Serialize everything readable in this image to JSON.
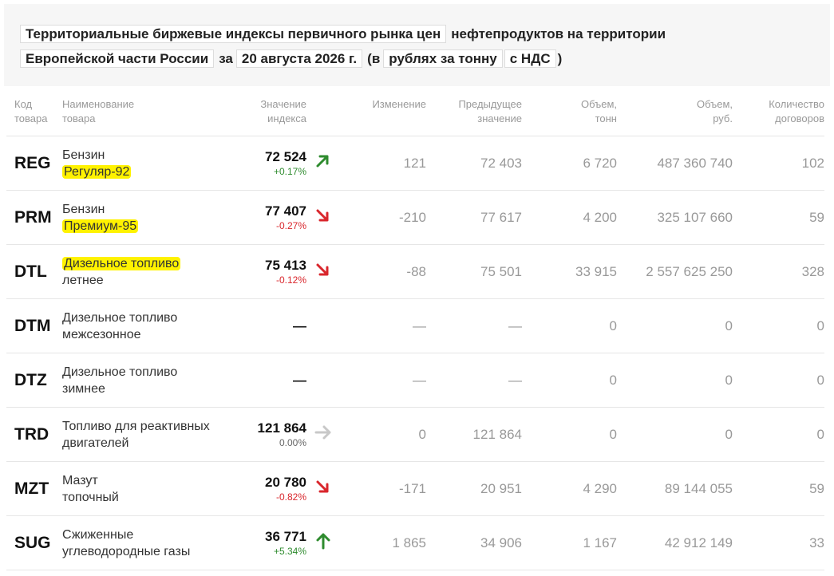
{
  "header": {
    "title": [
      "Территориальные биржевые индексы первичного рынка цен",
      "нефтепродуктов на территории",
      "Европейской части России",
      "за",
      "20 августа 2026 г.",
      "(в",
      "рублях за тонну",
      "с НДС",
      ")"
    ]
  },
  "table": {
    "columns": [
      [
        "Код",
        "товара"
      ],
      [
        "Наименование",
        "товара"
      ],
      [
        "Значение",
        "индекса"
      ],
      [
        "Изменение"
      ],
      [
        "Предыдущее",
        "значение"
      ],
      [
        "Объем,",
        "тонн"
      ],
      [
        "Объем,",
        "руб."
      ],
      [
        "Количество",
        "договоров"
      ]
    ],
    "rows": [
      {
        "code": "REG",
        "name": [
          "Бензин",
          "Регуляр-92"
        ],
        "index": "72 524",
        "change_pct": "+0.17%",
        "change": "121",
        "previous": "72 403",
        "volume_t": "6 720",
        "volume_rub": "487 360 740",
        "contracts": "102"
      },
      {
        "code": "PRM",
        "name": [
          "Бензин",
          "Премиум-95"
        ],
        "index": "77 407",
        "change_pct": "-0.27%",
        "change": "-210",
        "previous": "77 617",
        "volume_t": "4 200",
        "volume_rub": "325 107 660",
        "contracts": "59"
      },
      {
        "code": "DTL",
        "name": [
          "Дизельное топливо",
          "летнее"
        ],
        "index": "75 413",
        "change_pct": "-0.12%",
        "change": "-88",
        "previous": "75 501",
        "volume_t": "33 915",
        "volume_rub": "2 557 625 250",
        "contracts": "328"
      },
      {
        "code": "DTM",
        "name": [
          "Дизельное топливо",
          "межсезонное"
        ],
        "index": "—",
        "change": "—",
        "previous": "—",
        "volume_t": "0",
        "volume_rub": "0",
        "contracts": "0"
      },
      {
        "code": "DTZ",
        "name": [
          "Дизельное топливо",
          "зимнее"
        ],
        "index": "—",
        "change": "—",
        "previous": "—",
        "volume_t": "0",
        "volume_rub": "0",
        "contracts": "0"
      },
      {
        "code": "TRD",
        "name": [
          "Топливо для реактивных",
          "двигателей"
        ],
        "index": "121 864",
        "change_pct": "0.00%",
        "change": "0",
        "previous": "121 864",
        "volume_t": "0",
        "volume_rub": "0",
        "contracts": "0"
      },
      {
        "code": "MZT",
        "name": [
          "Мазут",
          "топочный"
        ],
        "index": "20 780",
        "change_pct": "-0.82%",
        "change": "-171",
        "previous": "20 951",
        "volume_t": "4 290",
        "volume_rub": "89 144 055",
        "contracts": "59"
      },
      {
        "code": "SUG",
        "name": [
          "Сжиженные",
          "углеводородные газы"
        ],
        "index": "36 771",
        "change_pct": "+5.34%",
        "change": "1 865",
        "previous": "34 906",
        "volume_t": "1 167",
        "volume_rub": "42 912 149",
        "contracts": "33"
      }
    ]
  }
}
